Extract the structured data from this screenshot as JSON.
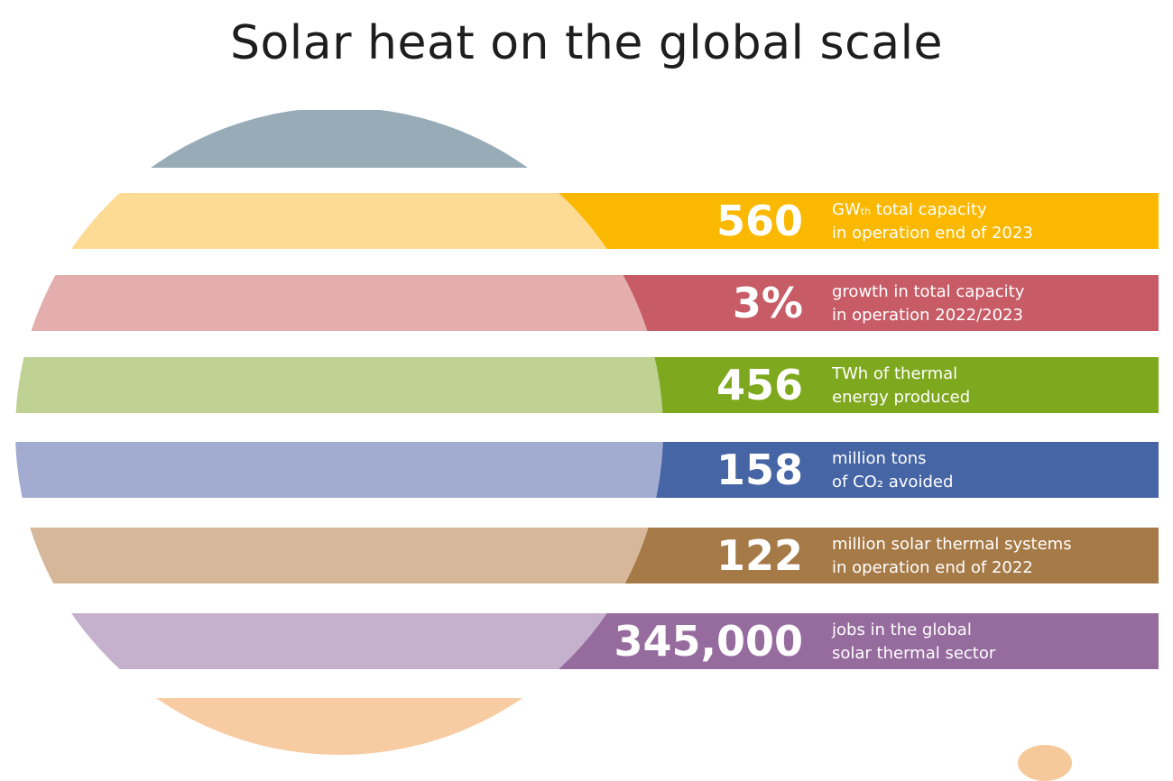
{
  "title": "Solar heat on the global scale",
  "colors": {
    "top_band": "#98acb7",
    "bottom_band": "#f8cca2"
  },
  "stats": [
    {
      "value": "560",
      "line1_main": "GW",
      "line1_sub": "th",
      "line1_rest": " total capacity",
      "line2": "in operation end of 2023",
      "dark": "#fbb800",
      "light": "#fddb94"
    },
    {
      "value": "3%",
      "line1_main": "growth in total capacity",
      "line1_sub": "",
      "line1_rest": "",
      "line2": "in operation 2022/2023",
      "dark": "#c75c67",
      "light": "#e3aead"
    },
    {
      "value": "456",
      "line1_main": "TWh of thermal",
      "line1_sub": "",
      "line1_rest": "",
      "line2": "energy produced",
      "dark": "#7ea81d",
      "light": "#bfd193"
    },
    {
      "value": "158",
      "line1_main": "million tons",
      "line1_sub": "",
      "line1_rest": "",
      "line2": "of CO₂ avoided",
      "dark": "#4565a5",
      "light": "#a2abd0"
    },
    {
      "value": "122",
      "line1_main": "million solar thermal systems",
      "line1_sub": "",
      "line1_rest": "",
      "line2": "in operation end of 2022",
      "dark": "#a67a47",
      "light": "#d6b799"
    },
    {
      "value": "345,000",
      "line1_main": "jobs in the global",
      "line1_sub": "",
      "line1_rest": "",
      "line2": "solar thermal sector",
      "dark": "#966b9e",
      "light": "#c5b1cd"
    }
  ]
}
